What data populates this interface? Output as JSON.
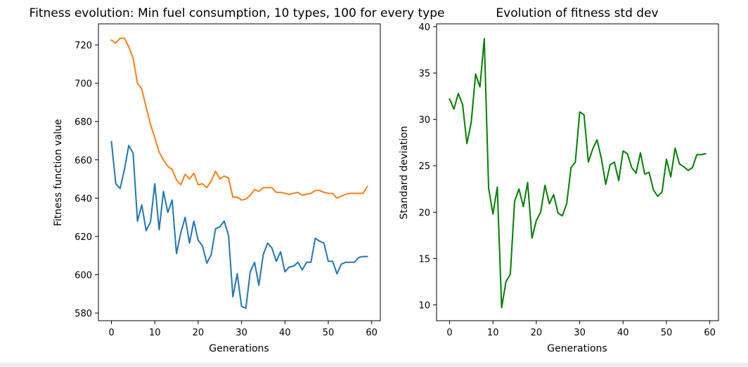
{
  "chart_data": [
    {
      "type": "line",
      "title": "Fitness evolution: Min fuel consumption, 10 types, 100 for every type",
      "xlabel": "Generations",
      "ylabel": "Fitness function value",
      "xlim": [
        -3,
        62
      ],
      "ylim": [
        576,
        731
      ],
      "xticks": [
        "0",
        "10",
        "20",
        "30",
        "40",
        "50",
        "60"
      ],
      "yticks": [
        "580",
        "600",
        "620",
        "640",
        "660",
        "680",
        "700",
        "720"
      ],
      "grid": false,
      "legend": "none",
      "x": [
        0,
        1,
        2,
        3,
        4,
        5,
        6,
        7,
        8,
        9,
        10,
        11,
        12,
        13,
        14,
        15,
        16,
        17,
        18,
        19,
        20,
        21,
        22,
        23,
        24,
        25,
        26,
        27,
        28,
        29,
        30,
        31,
        32,
        33,
        34,
        35,
        36,
        37,
        38,
        39,
        40,
        41,
        42,
        43,
        44,
        45,
        46,
        47,
        48,
        49,
        50,
        51,
        52,
        53,
        54,
        55,
        56,
        57,
        58,
        59
      ],
      "series": [
        {
          "color": "#1f77b4",
          "values": [
            669.5,
            647.5,
            645,
            655,
            667.5,
            663.5,
            628,
            636.5,
            623,
            627.5,
            647.5,
            623.5,
            643.5,
            632.5,
            639,
            611,
            622,
            630,
            616.5,
            628,
            618,
            615,
            606,
            610.5,
            624,
            625,
            628,
            620.5,
            588.5,
            600.5,
            583.5,
            582.5,
            601.5,
            606.5,
            594.5,
            610.5,
            616.5,
            614,
            607,
            612,
            601.5,
            604,
            604.5,
            606.5,
            602.5,
            606.5,
            606.5,
            619,
            617.5,
            616.5,
            607,
            607,
            600.5,
            605.5,
            606.5,
            606.5,
            606.5,
            609,
            609.5,
            609.5
          ]
        },
        {
          "color": "#ff7f0e",
          "values": [
            722.5,
            721,
            723.5,
            723.5,
            719,
            713,
            700,
            697,
            687.5,
            678.5,
            671.5,
            664,
            660,
            656.5,
            655,
            649.5,
            647,
            652.5,
            650,
            653,
            647,
            647.5,
            645.5,
            649,
            654,
            650,
            651.5,
            650.5,
            640.5,
            640.5,
            639,
            639.5,
            641.5,
            644.5,
            643.5,
            645.5,
            645.5,
            645.5,
            643,
            643,
            642.5,
            642,
            642.5,
            643,
            641.5,
            642,
            642.5,
            644,
            644,
            643,
            642.5,
            642.5,
            640,
            641,
            642,
            642.5,
            642.5,
            642.5,
            642.5,
            646
          ]
        }
      ]
    },
    {
      "type": "line",
      "title": "Evolution of fitness std dev",
      "xlabel": "Generations",
      "ylabel": "Standard deviation",
      "xlim": [
        -3,
        62
      ],
      "ylim": [
        8.3,
        40.3
      ],
      "xticks": [
        "0",
        "10",
        "20",
        "30",
        "40",
        "50",
        "60"
      ],
      "yticks": [
        "10",
        "15",
        "20",
        "25",
        "30",
        "35",
        "40"
      ],
      "grid": false,
      "legend": "none",
      "x": [
        0,
        1,
        2,
        3,
        4,
        5,
        6,
        7,
        8,
        9,
        10,
        11,
        12,
        13,
        14,
        15,
        16,
        17,
        18,
        19,
        20,
        21,
        22,
        23,
        24,
        25,
        26,
        27,
        28,
        29,
        30,
        31,
        32,
        33,
        34,
        35,
        36,
        37,
        38,
        39,
        40,
        41,
        42,
        43,
        44,
        45,
        46,
        47,
        48,
        49,
        50,
        51,
        52,
        53,
        54,
        55,
        56,
        57,
        58,
        59
      ],
      "series": [
        {
          "color": "#008000",
          "values": [
            32.2,
            31.1,
            32.8,
            31.6,
            27.4,
            29.7,
            34.9,
            33.5,
            38.7,
            22.6,
            19.8,
            22.7,
            9.7,
            12.5,
            13.3,
            21.2,
            22.5,
            20.6,
            23.2,
            17.2,
            19.1,
            20,
            22.9,
            20.9,
            21.9,
            19.9,
            19.6,
            20.9,
            24.8,
            25.4,
            30.8,
            30.5,
            25.4,
            26.8,
            27.8,
            25.8,
            23,
            25.1,
            25.4,
            23.4,
            26.6,
            26.3,
            24.8,
            24.2,
            26.4,
            24.1,
            24.3,
            22.4,
            21.7,
            22.2,
            25.7,
            23.8,
            26.9,
            25.2,
            24.9,
            24.5,
            24.8,
            26.2,
            26.2,
            26.3
          ]
        }
      ]
    }
  ]
}
